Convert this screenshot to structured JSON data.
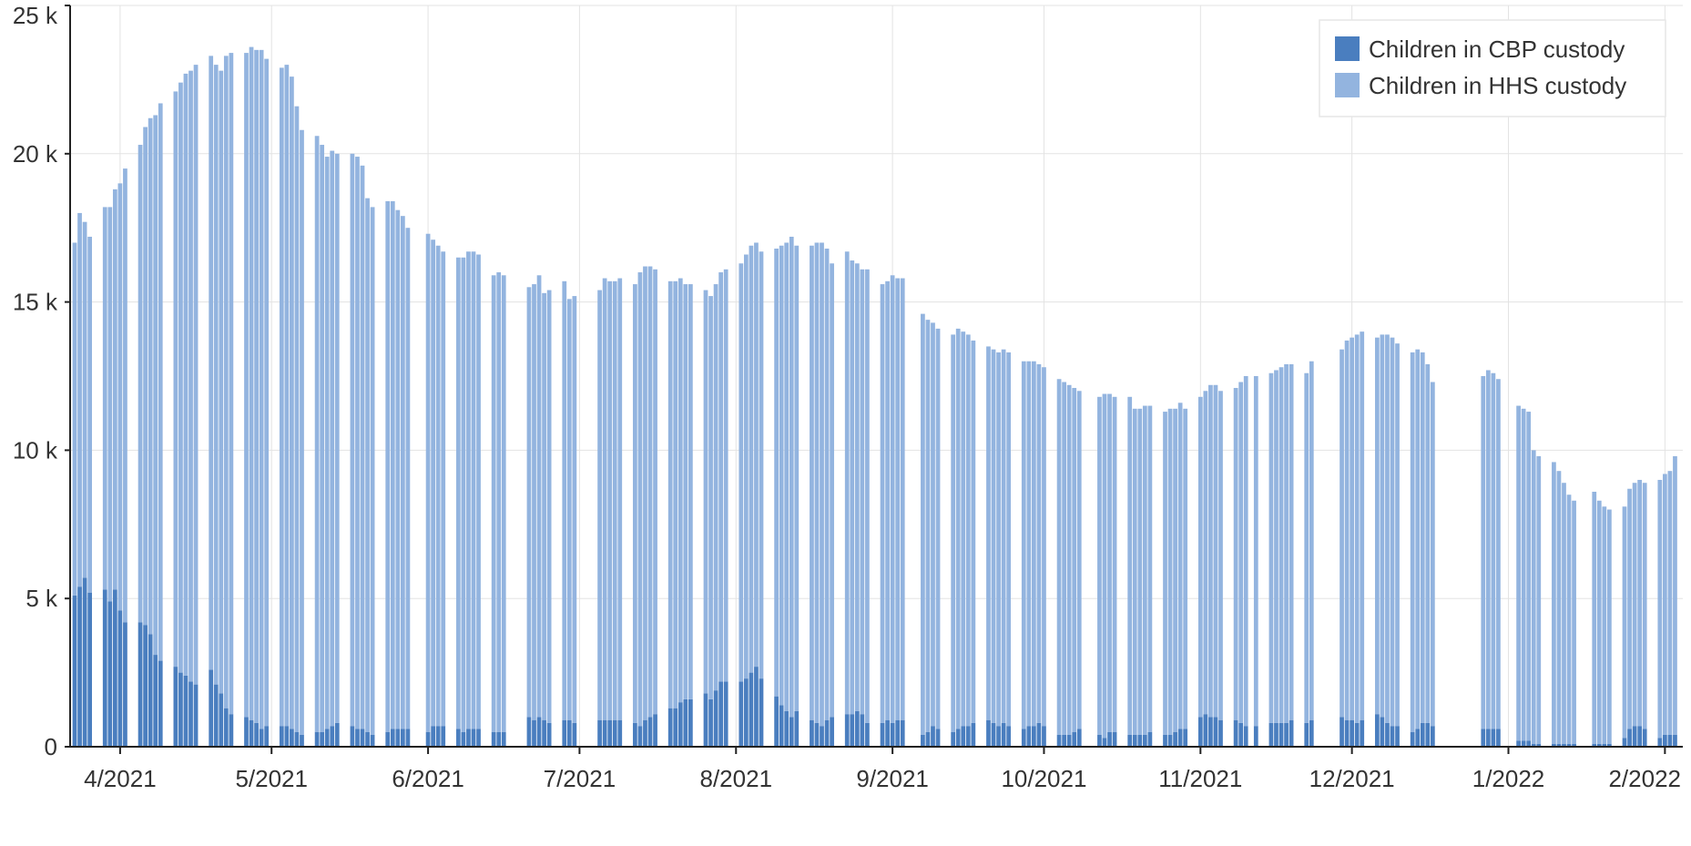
{
  "chart_data": {
    "type": "bar",
    "stacked": true,
    "title": "",
    "xlabel": "",
    "ylabel": "",
    "ylim": [
      0,
      25000
    ],
    "y_ticks": [
      {
        "value": 0,
        "label": "0"
      },
      {
        "value": 5000,
        "label": "5 k"
      },
      {
        "value": 10000,
        "label": "10 k"
      },
      {
        "value": 15000,
        "label": "15 k"
      },
      {
        "value": 20000,
        "label": "20 k"
      },
      {
        "value": 25000,
        "label": "25 k"
      }
    ],
    "x_ticks": [
      {
        "date": "2021-04-01",
        "label": "4/2021"
      },
      {
        "date": "2021-05-01",
        "label": "5/2021"
      },
      {
        "date": "2021-06-01",
        "label": "6/2021"
      },
      {
        "date": "2021-07-01",
        "label": "7/2021"
      },
      {
        "date": "2021-08-01",
        "label": "8/2021"
      },
      {
        "date": "2021-09-01",
        "label": "9/2021"
      },
      {
        "date": "2021-10-01",
        "label": "10/2021"
      },
      {
        "date": "2021-11-01",
        "label": "11/2021"
      },
      {
        "date": "2021-12-01",
        "label": "12/2021"
      },
      {
        "date": "2022-01-01",
        "label": "1/2022"
      },
      {
        "date": "2022-02-01",
        "label": "2/2022"
      }
    ],
    "x_range": [
      "2021-03-23",
      "2022-02-04"
    ],
    "grid": true,
    "legend_position": "top-right",
    "series": [
      {
        "name": "Children in CBP custody",
        "color": "#4a7ebf"
      },
      {
        "name": "Children in HHS custody",
        "color": "#93b4df"
      }
    ],
    "dates": [
      "2021-03-23",
      "2021-03-24",
      "2021-03-25",
      "2021-03-26",
      "2021-03-29",
      "2021-03-30",
      "2021-03-31",
      "2021-04-01",
      "2021-04-02",
      "2021-04-05",
      "2021-04-06",
      "2021-04-07",
      "2021-04-08",
      "2021-04-09",
      "2021-04-12",
      "2021-04-13",
      "2021-04-14",
      "2021-04-15",
      "2021-04-16",
      "2021-04-19",
      "2021-04-20",
      "2021-04-21",
      "2021-04-22",
      "2021-04-23",
      "2021-04-26",
      "2021-04-27",
      "2021-04-28",
      "2021-04-29",
      "2021-04-30",
      "2021-05-03",
      "2021-05-04",
      "2021-05-05",
      "2021-05-06",
      "2021-05-07",
      "2021-05-10",
      "2021-05-11",
      "2021-05-12",
      "2021-05-13",
      "2021-05-14",
      "2021-05-17",
      "2021-05-18",
      "2021-05-19",
      "2021-05-20",
      "2021-05-21",
      "2021-05-24",
      "2021-05-25",
      "2021-05-26",
      "2021-05-27",
      "2021-05-28",
      "2021-06-01",
      "2021-06-02",
      "2021-06-03",
      "2021-06-04",
      "2021-06-07",
      "2021-06-08",
      "2021-06-09",
      "2021-06-10",
      "2021-06-11",
      "2021-06-14",
      "2021-06-15",
      "2021-06-16",
      "2021-06-21",
      "2021-06-22",
      "2021-06-23",
      "2021-06-24",
      "2021-06-25",
      "2021-06-28",
      "2021-06-29",
      "2021-06-30",
      "2021-07-05",
      "2021-07-06",
      "2021-07-07",
      "2021-07-08",
      "2021-07-09",
      "2021-07-12",
      "2021-07-13",
      "2021-07-14",
      "2021-07-15",
      "2021-07-16",
      "2021-07-19",
      "2021-07-20",
      "2021-07-21",
      "2021-07-22",
      "2021-07-23",
      "2021-07-26",
      "2021-07-27",
      "2021-07-28",
      "2021-07-29",
      "2021-07-30",
      "2021-08-02",
      "2021-08-03",
      "2021-08-04",
      "2021-08-05",
      "2021-08-06",
      "2021-08-09",
      "2021-08-10",
      "2021-08-11",
      "2021-08-12",
      "2021-08-13",
      "2021-08-16",
      "2021-08-17",
      "2021-08-18",
      "2021-08-19",
      "2021-08-20",
      "2021-08-23",
      "2021-08-24",
      "2021-08-25",
      "2021-08-26",
      "2021-08-27",
      "2021-08-30",
      "2021-08-31",
      "2021-09-01",
      "2021-09-02",
      "2021-09-03",
      "2021-09-07",
      "2021-09-08",
      "2021-09-09",
      "2021-09-10",
      "2021-09-13",
      "2021-09-14",
      "2021-09-15",
      "2021-09-16",
      "2021-09-17",
      "2021-09-20",
      "2021-09-21",
      "2021-09-22",
      "2021-09-23",
      "2021-09-24",
      "2021-09-27",
      "2021-09-28",
      "2021-09-29",
      "2021-09-30",
      "2021-10-01",
      "2021-10-04",
      "2021-10-05",
      "2021-10-06",
      "2021-10-07",
      "2021-10-08",
      "2021-10-12",
      "2021-10-13",
      "2021-10-14",
      "2021-10-15",
      "2021-10-18",
      "2021-10-19",
      "2021-10-20",
      "2021-10-21",
      "2021-10-22",
      "2021-10-25",
      "2021-10-26",
      "2021-10-27",
      "2021-10-28",
      "2021-10-29",
      "2021-11-01",
      "2021-11-02",
      "2021-11-03",
      "2021-11-04",
      "2021-11-05",
      "2021-11-08",
      "2021-11-09",
      "2021-11-10",
      "2021-11-12",
      "2021-11-15",
      "2021-11-16",
      "2021-11-17",
      "2021-11-18",
      "2021-11-19",
      "2021-11-22",
      "2021-11-23",
      "2021-11-29",
      "2021-11-30",
      "2021-12-01",
      "2021-12-02",
      "2021-12-03",
      "2021-12-06",
      "2021-12-07",
      "2021-12-08",
      "2021-12-09",
      "2021-12-10",
      "2021-12-13",
      "2021-12-14",
      "2021-12-15",
      "2021-12-16",
      "2021-12-17",
      "2021-12-27",
      "2021-12-28",
      "2021-12-29",
      "2021-12-30",
      "2022-01-03",
      "2022-01-04",
      "2022-01-05",
      "2022-01-06",
      "2022-01-07",
      "2022-01-10",
      "2022-01-11",
      "2022-01-12",
      "2022-01-13",
      "2022-01-14",
      "2022-01-18",
      "2022-01-19",
      "2022-01-20",
      "2022-01-21",
      "2022-01-24",
      "2022-01-25",
      "2022-01-26",
      "2022-01-27",
      "2022-01-28",
      "2022-01-31",
      "2022-02-01",
      "2022-02-02",
      "2022-02-03"
    ],
    "cbp": [
      5100,
      5400,
      5700,
      5200,
      5300,
      4900,
      5300,
      4600,
      4200,
      4200,
      4100,
      3800,
      3100,
      2900,
      2700,
      2500,
      2400,
      2200,
      2100,
      2600,
      2100,
      1800,
      1300,
      1100,
      1000,
      900,
      800,
      600,
      700,
      700,
      700,
      600,
      500,
      400,
      500,
      500,
      600,
      700,
      800,
      700,
      600,
      600,
      500,
      400,
      500,
      600,
      600,
      600,
      600,
      500,
      700,
      700,
      700,
      600,
      500,
      600,
      600,
      600,
      500,
      500,
      500,
      1000,
      900,
      1000,
      900,
      800,
      900,
      900,
      800,
      900,
      900,
      900,
      900,
      900,
      800,
      700,
      900,
      1000,
      1100,
      1300,
      1300,
      1500,
      1600,
      1600,
      1800,
      1600,
      1900,
      2200,
      2200,
      2200,
      2300,
      2500,
      2700,
      2300,
      1700,
      1400,
      1200,
      1000,
      1200,
      900,
      800,
      700,
      900,
      1000,
      1100,
      1100,
      1200,
      1100,
      800,
      800,
      900,
      800,
      900,
      900,
      400,
      500,
      700,
      600,
      500,
      600,
      700,
      700,
      800,
      900,
      800,
      700,
      800,
      700,
      600,
      700,
      700,
      800,
      700,
      400,
      400,
      400,
      500,
      600,
      400,
      300,
      500,
      500,
      400,
      400,
      400,
      400,
      500,
      400,
      400,
      500,
      600,
      600,
      1000,
      1100,
      1000,
      1000,
      900,
      900,
      800,
      700,
      700,
      800,
      800,
      800,
      800,
      900,
      800,
      900,
      1000,
      900,
      900,
      800,
      900,
      1100,
      1000,
      800,
      700,
      700,
      500,
      600,
      800,
      800,
      700,
      600,
      600,
      600,
      600,
      200,
      200,
      200,
      100,
      100,
      100,
      100,
      100,
      100,
      100,
      100,
      100,
      100,
      100,
      300,
      600,
      700,
      700,
      600,
      300,
      400,
      400,
      400
    ],
    "hhs": [
      11900,
      12600,
      12000,
      12000,
      12900,
      13300,
      13500,
      14400,
      15300,
      16100,
      16800,
      17400,
      18200,
      18800,
      19400,
      19900,
      20300,
      20600,
      20900,
      20700,
      20900,
      21000,
      22000,
      22300,
      22400,
      22700,
      22700,
      22900,
      22500,
      22200,
      22300,
      22000,
      21100,
      20400,
      20100,
      19800,
      19300,
      19400,
      19200,
      19300,
      19300,
      19000,
      18000,
      17800,
      17900,
      17800,
      17500,
      17300,
      16900,
      16800,
      16400,
      16200,
      16000,
      15900,
      16000,
      16100,
      16100,
      16000,
      15400,
      15500,
      15400,
      14500,
      14700,
      14900,
      14400,
      14600,
      14800,
      14200,
      14400,
      14500,
      14900,
      14800,
      14800,
      14900,
      14800,
      15300,
      15300,
      15200,
      15000,
      14400,
      14400,
      14300,
      14000,
      14000,
      13600,
      13600,
      13700,
      13800,
      13900,
      14100,
      14300,
      14400,
      14300,
      14400,
      15100,
      15500,
      15800,
      16200,
      15700,
      16000,
      16200,
      16300,
      15900,
      15300,
      15600,
      15300,
      15100,
      15000,
      15300,
      14800,
      14800,
      15100,
      14900,
      14900,
      14200,
      13900,
      13600,
      13500,
      13400,
      13500,
      13300,
      13200,
      12900,
      12600,
      12600,
      12600,
      12600,
      12600,
      12400,
      12300,
      12300,
      12100,
      12100,
      12000,
      11900,
      11800,
      11600,
      11400,
      11400,
      11600,
      11400,
      11300,
      11400,
      11000,
      11000,
      11100,
      11000,
      10900,
      11000,
      10900,
      11000,
      10800,
      10800,
      10900,
      11200,
      11200,
      11100,
      11200,
      11500,
      11800,
      11800,
      11800,
      11900,
      12000,
      12100,
      12000,
      11800,
      12100,
      12400,
      12800,
      12900,
      13100,
      13100,
      12700,
      12900,
      13100,
      13100,
      12900,
      12800,
      12800,
      12500,
      12100,
      11600,
      11900,
      12100,
      12000,
      11800,
      11300,
      11200,
      11100,
      9900,
      9700,
      9500,
      9200,
      8800,
      8400,
      8200,
      8500,
      8200,
      8000,
      7900,
      7800,
      8100,
      8200,
      8300,
      8300,
      8700,
      8800,
      8900,
      9400
    ]
  },
  "legend": {
    "items": [
      {
        "label": "Children in CBP custody",
        "color": "#4a7ebf"
      },
      {
        "label": "Children in HHS custody",
        "color": "#93b4df"
      }
    ]
  }
}
